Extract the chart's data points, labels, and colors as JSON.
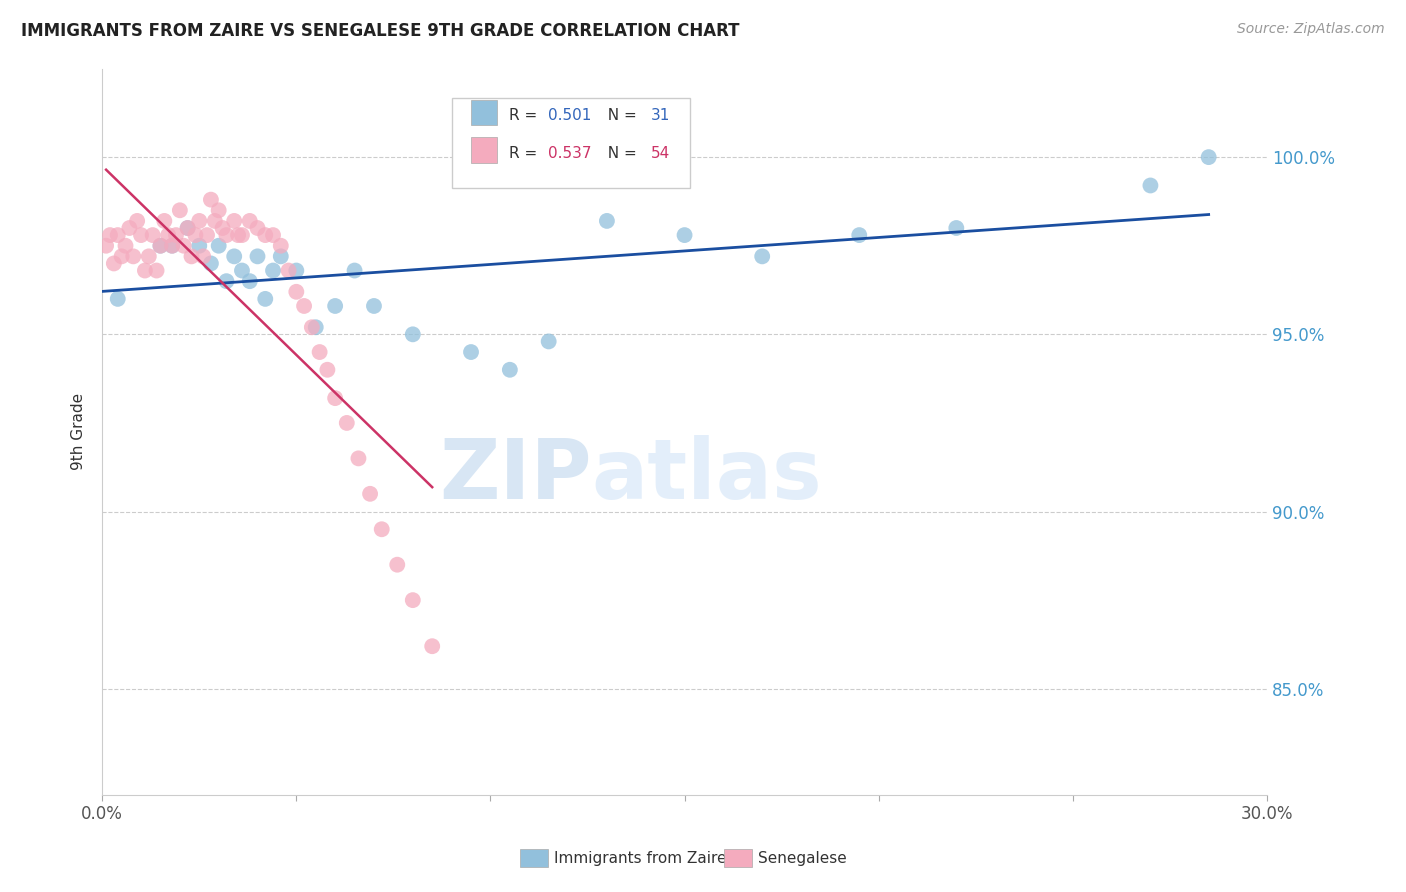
{
  "title": "IMMIGRANTS FROM ZAIRE VS SENEGALESE 9TH GRADE CORRELATION CHART",
  "source": "Source: ZipAtlas.com",
  "ylabel": "9th Grade",
  "ytick_labels": [
    "100.0%",
    "95.0%",
    "90.0%",
    "85.0%"
  ],
  "ytick_values": [
    1.0,
    0.95,
    0.9,
    0.85
  ],
  "xmin": 0.0,
  "xmax": 0.3,
  "ymin": 0.82,
  "ymax": 1.025,
  "legend_blue_R": "0.501",
  "legend_blue_N": "31",
  "legend_pink_R": "0.537",
  "legend_pink_N": "54",
  "legend_blue_short": "Immigrants from Zaire",
  "legend_pink_short": "Senegalese",
  "blue_color": "#92C0DC",
  "pink_color": "#F4ABBE",
  "blue_line_color": "#1A4EA0",
  "pink_line_color": "#CC3366",
  "watermark_zip": "ZIP",
  "watermark_atlas": "atlas",
  "blue_scatter_x": [
    0.004,
    0.015,
    0.018,
    0.022,
    0.025,
    0.028,
    0.03,
    0.032,
    0.034,
    0.036,
    0.038,
    0.04,
    0.042,
    0.044,
    0.046,
    0.05,
    0.055,
    0.06,
    0.065,
    0.07,
    0.08,
    0.095,
    0.105,
    0.115,
    0.13,
    0.15,
    0.17,
    0.195,
    0.22,
    0.27,
    0.285
  ],
  "blue_scatter_y": [
    0.96,
    0.975,
    0.975,
    0.98,
    0.975,
    0.97,
    0.975,
    0.965,
    0.972,
    0.968,
    0.965,
    0.972,
    0.96,
    0.968,
    0.972,
    0.968,
    0.952,
    0.958,
    0.968,
    0.958,
    0.95,
    0.945,
    0.94,
    0.948,
    0.982,
    0.978,
    0.972,
    0.978,
    0.98,
    0.992,
    1.0
  ],
  "pink_scatter_x": [
    0.001,
    0.002,
    0.003,
    0.004,
    0.005,
    0.006,
    0.007,
    0.008,
    0.009,
    0.01,
    0.011,
    0.012,
    0.013,
    0.014,
    0.015,
    0.016,
    0.017,
    0.018,
    0.019,
    0.02,
    0.021,
    0.022,
    0.023,
    0.024,
    0.025,
    0.026,
    0.027,
    0.028,
    0.029,
    0.03,
    0.031,
    0.032,
    0.034,
    0.035,
    0.036,
    0.038,
    0.04,
    0.042,
    0.044,
    0.046,
    0.048,
    0.05,
    0.052,
    0.054,
    0.056,
    0.058,
    0.06,
    0.063,
    0.066,
    0.069,
    0.072,
    0.076,
    0.08,
    0.085
  ],
  "pink_scatter_y": [
    0.975,
    0.978,
    0.97,
    0.978,
    0.972,
    0.975,
    0.98,
    0.972,
    0.982,
    0.978,
    0.968,
    0.972,
    0.978,
    0.968,
    0.975,
    0.982,
    0.978,
    0.975,
    0.978,
    0.985,
    0.975,
    0.98,
    0.972,
    0.978,
    0.982,
    0.972,
    0.978,
    0.988,
    0.982,
    0.985,
    0.98,
    0.978,
    0.982,
    0.978,
    0.978,
    0.982,
    0.98,
    0.978,
    0.978,
    0.975,
    0.968,
    0.962,
    0.958,
    0.952,
    0.945,
    0.94,
    0.932,
    0.925,
    0.915,
    0.905,
    0.895,
    0.885,
    0.875,
    0.862
  ],
  "pink_line_x_start": 0.001,
  "pink_line_x_end": 0.085,
  "blue_line_x_start": 0.0,
  "blue_line_x_end": 0.285
}
